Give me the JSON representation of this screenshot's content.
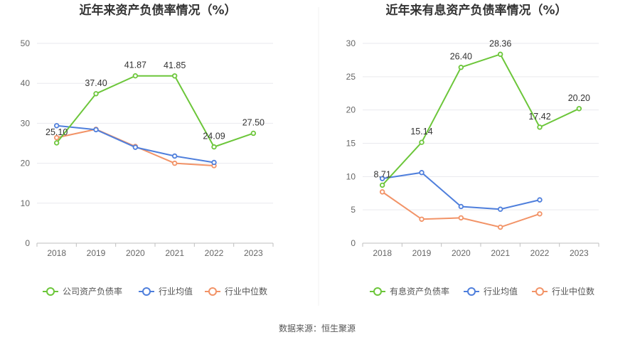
{
  "chart_data": [
    {
      "type": "line",
      "title": "近年来资产负债率情况（%）",
      "categories": [
        "2018",
        "2019",
        "2020",
        "2021",
        "2022",
        "2023"
      ],
      "ylim": [
        0,
        50
      ],
      "yticks": [
        0,
        10,
        20,
        30,
        40,
        50
      ],
      "grid": true,
      "legend_position": "bottom",
      "series": [
        {
          "name": "公司资产负债率",
          "color": "#6cc63a",
          "values": [
            25.1,
            37.4,
            41.87,
            41.85,
            24.09,
            27.5
          ],
          "labels": [
            "25.10",
            "37.40",
            "41.87",
            "41.85",
            "24.09",
            "27.50"
          ]
        },
        {
          "name": "行业均值",
          "color": "#4f7fdc",
          "values": [
            29.4,
            28.4,
            24.0,
            21.8,
            20.2,
            null
          ]
        },
        {
          "name": "行业中位数",
          "color": "#f29367",
          "values": [
            26.4,
            28.5,
            24.2,
            20.0,
            19.4,
            null
          ]
        }
      ]
    },
    {
      "type": "line",
      "title": "近年来有息资产负债率情况（%）",
      "categories": [
        "2018",
        "2019",
        "2020",
        "2021",
        "2022",
        "2023"
      ],
      "ylim": [
        0,
        30
      ],
      "yticks": [
        0,
        5,
        10,
        15,
        20,
        25,
        30
      ],
      "grid": true,
      "legend_position": "bottom",
      "series": [
        {
          "name": "有息资产负债率",
          "color": "#6cc63a",
          "values": [
            8.71,
            15.14,
            26.4,
            28.36,
            17.42,
            20.2
          ],
          "labels": [
            "8.71",
            "15.14",
            "26.40",
            "28.36",
            "17.42",
            "20.20"
          ]
        },
        {
          "name": "行业均值",
          "color": "#4f7fdc",
          "values": [
            9.7,
            10.6,
            5.5,
            5.1,
            6.5,
            null
          ]
        },
        {
          "name": "行业中位数",
          "color": "#f29367",
          "values": [
            7.7,
            3.6,
            3.8,
            2.4,
            4.4,
            null
          ]
        }
      ]
    }
  ],
  "source": "数据来源：恒生聚源"
}
